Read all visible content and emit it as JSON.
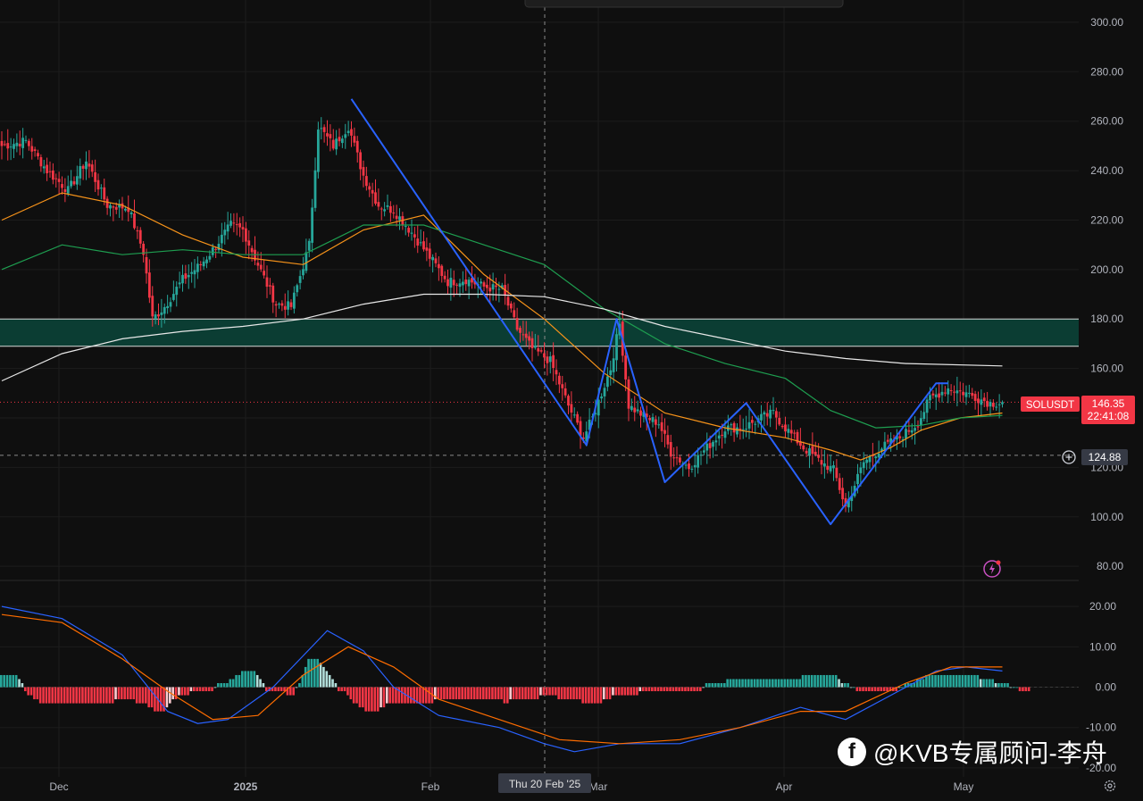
{
  "symbol": "SOLUSDT",
  "last_price": "146.35",
  "countdown": "22:41:08",
  "crosshair_price": "124.88",
  "crosshair_date": "Thu 20 Feb '25",
  "watermark": "@KVB专属顾问-李舟",
  "icons": {
    "facebook_logo": "f",
    "alert": "add-alert-icon",
    "lightning": "lightning-icon",
    "settings": "gear-icon"
  },
  "colors": {
    "up": "#26a69a",
    "down": "#f23645",
    "ma_fast": "#f7931a",
    "ma_mid": "#1e9e50",
    "ma_slow": "#e8e8e8",
    "zone": "#0b3d33",
    "pattern": "#2962ff",
    "macd": "#2962ff",
    "signal": "#ff6d00"
  },
  "chart_data": [
    {
      "type": "candlestick",
      "x_ticks": [
        "Dec",
        "2025",
        "Feb",
        "Mar",
        "Apr",
        "May"
      ],
      "y_ticks": [
        "80.00",
        "100.00",
        "120.00",
        "140.00",
        "160.00",
        "180.00",
        "200.00",
        "220.00",
        "240.00",
        "260.00",
        "280.00",
        "300.00"
      ],
      "y_tick_values": [
        80,
        100,
        120,
        140,
        160,
        180,
        200,
        220,
        240,
        260,
        280,
        300
      ],
      "ylim": [
        75,
        309
      ],
      "resistance_zone": [
        169,
        180
      ],
      "price_line": 146.35,
      "crosshair_level": 124.88,
      "anchors": [
        [
          0,
          250
        ],
        [
          8,
          252
        ],
        [
          15,
          240
        ],
        [
          22,
          232
        ],
        [
          28,
          244
        ],
        [
          35,
          226
        ],
        [
          42,
          225
        ],
        [
          47,
          207
        ],
        [
          50,
          180
        ],
        [
          54,
          185
        ],
        [
          60,
          196
        ],
        [
          66,
          202
        ],
        [
          70,
          208
        ],
        [
          76,
          218
        ],
        [
          80,
          216
        ],
        [
          85,
          202
        ],
        [
          91,
          186
        ],
        [
          96,
          185
        ],
        [
          102,
          210
        ],
        [
          105,
          258
        ],
        [
          110,
          250
        ],
        [
          115,
          258
        ],
        [
          120,
          238
        ],
        [
          125,
          226
        ],
        [
          130,
          224
        ],
        [
          136,
          215
        ],
        [
          142,
          205
        ],
        [
          148,
          195
        ],
        [
          154,
          196
        ],
        [
          160,
          193
        ],
        [
          166,
          192
        ],
        [
          171,
          176
        ],
        [
          176,
          168
        ],
        [
          182,
          163
        ],
        [
          188,
          145
        ],
        [
          193,
          132
        ],
        [
          196,
          140
        ],
        [
          202,
          160
        ],
        [
          205,
          178
        ],
        [
          208,
          145
        ],
        [
          214,
          140
        ],
        [
          218,
          138
        ],
        [
          222,
          126
        ],
        [
          228,
          120
        ],
        [
          234,
          128
        ],
        [
          240,
          136
        ],
        [
          246,
          136
        ],
        [
          252,
          140
        ],
        [
          256,
          142
        ],
        [
          260,
          136
        ],
        [
          266,
          128
        ],
        [
          272,
          122
        ],
        [
          276,
          119
        ],
        [
          280,
          104
        ],
        [
          282,
          110
        ],
        [
          286,
          122
        ],
        [
          292,
          128
        ],
        [
          298,
          132
        ],
        [
          304,
          138
        ],
        [
          308,
          148
        ],
        [
          314,
          152
        ],
        [
          320,
          150
        ],
        [
          324,
          148
        ],
        [
          328,
          146
        ],
        [
          332,
          146.35
        ]
      ],
      "series": [
        {
          "name": "",
          "kind": "ma_fast",
          "points": [
            [
              0,
              220
            ],
            [
              20,
              231
            ],
            [
              40,
              226
            ],
            [
              60,
              214
            ],
            [
              80,
              205
            ],
            [
              100,
              202
            ],
            [
              120,
              216
            ],
            [
              140,
              222
            ],
            [
              160,
              198
            ],
            [
              180,
              180
            ],
            [
              200,
              158
            ],
            [
              220,
              142
            ],
            [
              240,
              136
            ],
            [
              260,
              132
            ],
            [
              275,
              127
            ],
            [
              285,
              123
            ],
            [
              295,
              128
            ],
            [
              305,
              135
            ],
            [
              318,
              140
            ],
            [
              332,
              142
            ]
          ]
        },
        {
          "name": "",
          "kind": "ma_mid",
          "points": [
            [
              0,
              200
            ],
            [
              20,
              210
            ],
            [
              40,
              206
            ],
            [
              60,
              208
            ],
            [
              80,
              206
            ],
            [
              100,
              206
            ],
            [
              120,
              218
            ],
            [
              140,
              218
            ],
            [
              160,
              210
            ],
            [
              180,
              202
            ],
            [
              200,
              184
            ],
            [
              220,
              170
            ],
            [
              240,
              162
            ],
            [
              260,
              156
            ],
            [
              275,
              143
            ],
            [
              290,
              136
            ],
            [
              305,
              137
            ],
            [
              318,
              140
            ],
            [
              332,
              141
            ]
          ]
        },
        {
          "name": "",
          "kind": "ma_slow",
          "points": [
            [
              0,
              155
            ],
            [
              20,
              166
            ],
            [
              40,
              172
            ],
            [
              60,
              175
            ],
            [
              80,
              177
            ],
            [
              100,
              180
            ],
            [
              120,
              186
            ],
            [
              140,
              190
            ],
            [
              160,
              190
            ],
            [
              180,
              189
            ],
            [
              200,
              184
            ],
            [
              220,
              177
            ],
            [
              240,
              172
            ],
            [
              260,
              167
            ],
            [
              280,
              164
            ],
            [
              300,
              162
            ],
            [
              332,
              161
            ]
          ]
        }
      ],
      "pattern_lines": [
        [
          [
            116,
            269
          ],
          [
            194,
            129
          ],
          [
            204,
            180
          ],
          [
            220,
            114
          ],
          [
            247,
            146
          ],
          [
            275,
            97
          ],
          [
            310,
            154
          ],
          [
            314,
            154
          ]
        ]
      ]
    },
    {
      "type": "macd",
      "y_ticks": [
        "20.00",
        "10.00",
        "0.00",
        "-10.00",
        "-20.00"
      ],
      "y_tick_values": [
        20,
        10,
        0,
        -10,
        -20
      ],
      "ylim": [
        -24,
        26
      ],
      "histogram": [
        3,
        3,
        3,
        3,
        3,
        3,
        2,
        1,
        -1,
        -2,
        -2,
        -3,
        -3,
        -4,
        -4,
        -4,
        -4,
        -4,
        -4,
        -4,
        -4,
        -4,
        -4,
        -4,
        -4,
        -4,
        -4,
        -4,
        -4,
        -4,
        -4,
        -4,
        -4,
        -4,
        -4,
        -4,
        -4,
        -4,
        -3,
        -3,
        -3,
        -3,
        -3,
        -3,
        -3,
        -4,
        -4,
        -4,
        -4,
        -5,
        -5,
        -6,
        -6,
        -6,
        -6,
        -5,
        -4,
        -3,
        -3,
        -2,
        -2,
        -2,
        -2,
        -1,
        -1,
        -1,
        -1,
        -1,
        -1,
        -1,
        -1,
        0,
        1,
        1,
        1,
        1,
        2,
        2,
        3,
        3,
        4,
        4,
        4,
        4,
        4,
        3,
        2,
        1,
        -1,
        -1,
        -1,
        -1,
        -1,
        -1,
        -1,
        -2,
        -2,
        -2,
        0,
        1,
        3,
        5,
        7,
        7,
        7,
        7,
        6,
        5,
        4,
        3,
        2,
        1,
        -1,
        -1,
        -1,
        -2,
        -3,
        -4,
        -4,
        -5,
        -5,
        -6,
        -6,
        -6,
        -6,
        -6,
        -5,
        -5,
        -4,
        -4,
        -4,
        -4,
        -4,
        -4,
        -4,
        -4,
        -4,
        -4,
        -4,
        -4,
        -4,
        -4,
        -4,
        -4,
        -3,
        -3,
        -3,
        -3,
        -3,
        -3,
        -3,
        -3,
        -3,
        -3,
        -3,
        -3,
        -3,
        -3,
        -3,
        -3,
        -3,
        -3,
        -3,
        -3,
        -3,
        -3,
        -3,
        -4,
        -4,
        -3,
        -3,
        -3,
        -3,
        -3,
        -3,
        -3,
        -3,
        -3,
        -3,
        -2,
        -2,
        -2,
        -2,
        -2,
        -2,
        -3,
        -3,
        -3,
        -3,
        -3,
        -3,
        -3,
        -3,
        -4,
        -4,
        -4,
        -4,
        -4,
        -4,
        -4,
        -3,
        -3,
        -3,
        -2,
        -2,
        -2,
        -2,
        -2,
        -2,
        -2,
        -2,
        -2,
        -1,
        -1,
        -1,
        -1,
        -1,
        -1,
        -1,
        -1,
        -1,
        -1,
        -1,
        -1,
        -1,
        -1,
        -1,
        -1,
        -1,
        -1,
        -1,
        -1,
        -1,
        0,
        1,
        1,
        1,
        1,
        1,
        1,
        1,
        2,
        2,
        2,
        2,
        2,
        2,
        2,
        2,
        2,
        2,
        2,
        2,
        2,
        2,
        2,
        2,
        2,
        2,
        2,
        2,
        2,
        2,
        2,
        2,
        2,
        3,
        3,
        3,
        3,
        3,
        3,
        3,
        3,
        3,
        3,
        3,
        3,
        2,
        1,
        1,
        1,
        0,
        0,
        -1,
        -1,
        -1,
        -1,
        -1,
        -1,
        -1,
        -1,
        -1,
        -1,
        -1,
        -1,
        -1,
        -1,
        0,
        0,
        1,
        1,
        1,
        1,
        2,
        2,
        2,
        3,
        3,
        3,
        3,
        3,
        3,
        3,
        3,
        3,
        3,
        3,
        3,
        3,
        3,
        3,
        3,
        3,
        3,
        2,
        2,
        2,
        2,
        2,
        1,
        1,
        1,
        1,
        1,
        0,
        0,
        0,
        -1,
        -1,
        -1,
        -1
      ],
      "series": [
        {
          "name": "",
          "kind": "macd",
          "points": [
            [
              0,
              20
            ],
            [
              20,
              17
            ],
            [
              40,
              8
            ],
            [
              55,
              -6
            ],
            [
              65,
              -9
            ],
            [
              75,
              -8
            ],
            [
              90,
              0
            ],
            [
              108,
              14
            ],
            [
              120,
              9
            ],
            [
              130,
              0
            ],
            [
              145,
              -7
            ],
            [
              165,
              -10
            ],
            [
              180,
              -14
            ],
            [
              190,
              -16
            ],
            [
              205,
              -14
            ],
            [
              225,
              -14
            ],
            [
              245,
              -10
            ],
            [
              265,
              -5
            ],
            [
              280,
              -8
            ],
            [
              295,
              -2
            ],
            [
              310,
              4
            ],
            [
              320,
              5
            ],
            [
              332,
              4
            ]
          ]
        },
        {
          "name": "",
          "kind": "signal",
          "points": [
            [
              0,
              18
            ],
            [
              20,
              16
            ],
            [
              40,
              7
            ],
            [
              55,
              -1
            ],
            [
              70,
              -8
            ],
            [
              85,
              -7
            ],
            [
              100,
              3
            ],
            [
              115,
              10
            ],
            [
              130,
              5
            ],
            [
              145,
              -3
            ],
            [
              165,
              -8
            ],
            [
              185,
              -13
            ],
            [
              205,
              -14
            ],
            [
              225,
              -13
            ],
            [
              245,
              -10
            ],
            [
              265,
              -6
            ],
            [
              280,
              -6
            ],
            [
              300,
              1
            ],
            [
              315,
              5
            ],
            [
              332,
              5
            ]
          ]
        }
      ]
    }
  ]
}
